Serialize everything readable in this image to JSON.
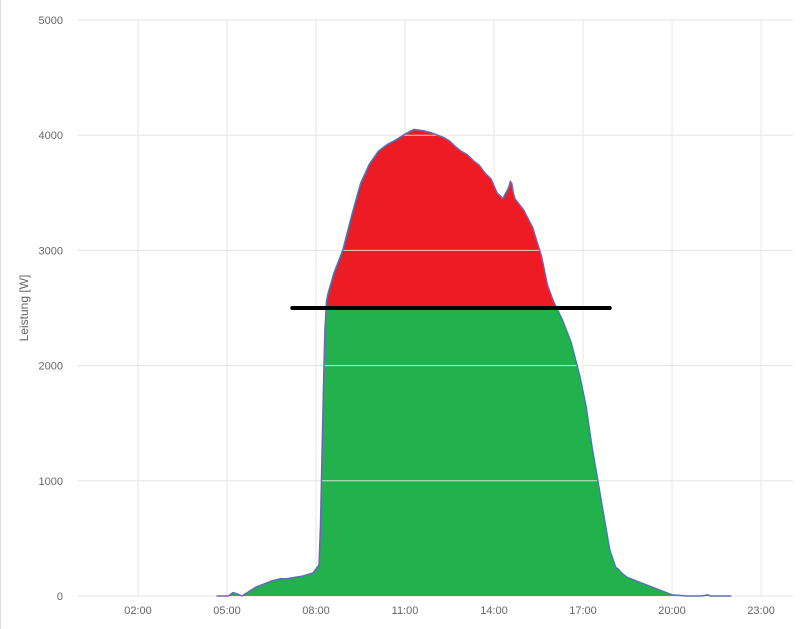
{
  "chart_data": {
    "type": "area",
    "title": "",
    "xlabel": "",
    "ylabel": "Leistung [W]",
    "x_unit": "hours",
    "xlim": [
      0.0,
      24.0
    ],
    "ylim": [
      0,
      5000
    ],
    "y_ticks": [
      0,
      1000,
      2000,
      3000,
      4000,
      5000
    ],
    "x_tick_values": [
      2,
      5,
      8,
      11,
      14,
      17,
      20,
      23
    ],
    "x_tick_labels": [
      "02:00",
      "05:00",
      "08:00",
      "11:00",
      "14:00",
      "17:00",
      "20:00",
      "23:00"
    ],
    "grid": true,
    "threshold": {
      "value": 2500,
      "x_start": 7.2,
      "x_end": 17.9,
      "color": "#000000"
    },
    "colors": {
      "above": "#ED1C24",
      "below": "#22B14C",
      "outline": "#5B6FB8",
      "grid": "#e6e6e6"
    },
    "series": [
      {
        "x": [
          4.65,
          5.05,
          5.2,
          5.33,
          5.5,
          6.0,
          6.5,
          6.8,
          7.0,
          7.5,
          7.9,
          8.1,
          8.15,
          8.2,
          8.25,
          8.3,
          8.35,
          8.4,
          8.6,
          8.9,
          9.2,
          9.5,
          9.8,
          10.1,
          10.4,
          10.7,
          11.0,
          11.3,
          11.6,
          11.9,
          12.1,
          12.3,
          12.5,
          12.7,
          12.9,
          13.1,
          13.3,
          13.5,
          13.7,
          13.9,
          14.1,
          14.3,
          14.5,
          14.55,
          14.6,
          14.65,
          14.7,
          15.0,
          15.3,
          15.6,
          15.8,
          16.0,
          16.3,
          16.6,
          16.9,
          17.1,
          17.3,
          17.5,
          17.7,
          17.9,
          18.1,
          18.2,
          18.3,
          18.5,
          19.0,
          19.5,
          20.0,
          20.5,
          20.8,
          21.0,
          21.2,
          21.3,
          21.5,
          22.0
        ],
        "y": [
          0,
          0,
          30,
          20,
          0,
          80,
          130,
          150,
          150,
          170,
          200,
          270,
          600,
          1200,
          1800,
          2300,
          2550,
          2620,
          2800,
          3000,
          3300,
          3580,
          3750,
          3860,
          3920,
          3960,
          4010,
          4050,
          4040,
          4020,
          4000,
          3980,
          3950,
          3900,
          3860,
          3830,
          3780,
          3740,
          3670,
          3620,
          3500,
          3450,
          3550,
          3600,
          3580,
          3500,
          3450,
          3350,
          3200,
          2950,
          2700,
          2560,
          2400,
          2200,
          1900,
          1650,
          1300,
          1000,
          700,
          400,
          250,
          230,
          200,
          160,
          110,
          60,
          10,
          0,
          0,
          0,
          10,
          0,
          0,
          0
        ]
      }
    ]
  }
}
